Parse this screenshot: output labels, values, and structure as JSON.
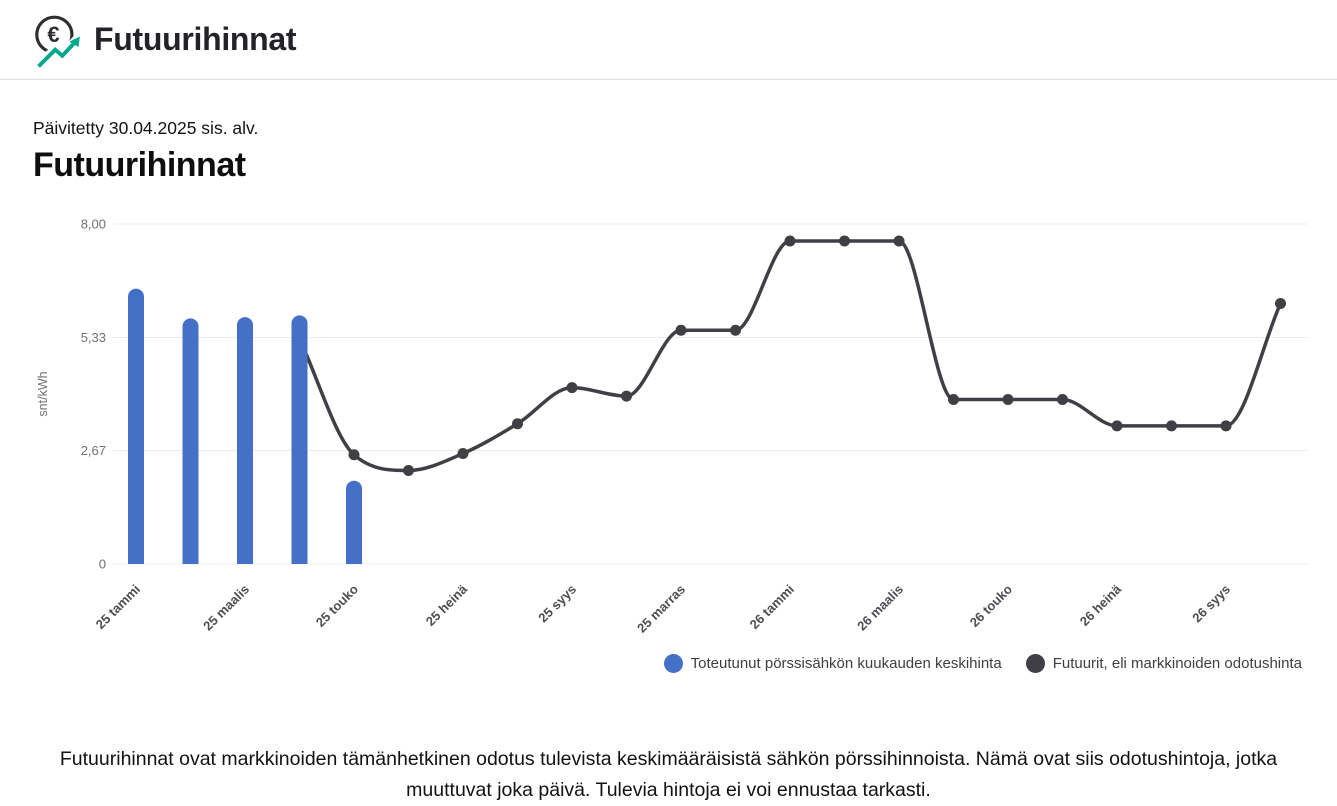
{
  "header": {
    "title": "Futuurihinnat",
    "icon": "euro-trend-icon"
  },
  "page": {
    "updated_text": "Päivitetty 30.04.2025 sis. alv.",
    "heading": "Futuurihinnat",
    "footer_text": "Futuurihinnat ovat markkinoiden tämänhetkinen odotus tulevista keskimääräisistä sähkön pörssihinnoista. Nämä ovat siis odotushintoja, jotka muuttuvat joka päivä. Tulevia hintoja ei voi ennustaa tarkasti."
  },
  "colors": {
    "bar_blue": "#4470c8",
    "line_dark": "#3f3f45",
    "accent_teal": "#00a88e",
    "icon_dark": "#2e2e33",
    "gridline": "#ebebee"
  },
  "chart_data": {
    "type": "bar+line",
    "title": "Futuurihinnat",
    "ylabel": "snt/kWh",
    "xlabel": "",
    "ylim": [
      0,
      8
    ],
    "grid": "horizontal",
    "legend_position": "bottom-right",
    "yticks": [
      {
        "value": 0,
        "label": "0"
      },
      {
        "value": 2.67,
        "label": "2,67"
      },
      {
        "value": 5.33,
        "label": "5,33"
      },
      {
        "value": 8,
        "label": "8,00"
      }
    ],
    "n_slots": 22,
    "x_tick_labels": [
      {
        "slot": 0,
        "label": "25 tammi"
      },
      {
        "slot": 2,
        "label": "25 maalis"
      },
      {
        "slot": 4,
        "label": "25 touko"
      },
      {
        "slot": 6,
        "label": "25 heinä"
      },
      {
        "slot": 8,
        "label": "25 syys"
      },
      {
        "slot": 10,
        "label": "25 marras"
      },
      {
        "slot": 12,
        "label": "26 tammi"
      },
      {
        "slot": 14,
        "label": "26 maalis"
      },
      {
        "slot": 16,
        "label": "26 touko"
      },
      {
        "slot": 18,
        "label": "26 heinä"
      },
      {
        "slot": 20,
        "label": "26 syys"
      }
    ],
    "series": [
      {
        "name": "Toteutunut pörssisähkön kuukauden keskihinta",
        "type": "bar",
        "color": "#4470c8",
        "values": [
          6.48,
          5.78,
          5.81,
          5.85,
          1.96,
          null,
          null,
          null,
          null,
          null,
          null,
          null,
          null,
          null,
          null,
          null,
          null,
          null,
          null,
          null,
          null,
          null
        ]
      },
      {
        "name": "Futuurit, eli markkinoiden odotushinta",
        "type": "line",
        "color": "#3f3f45",
        "values": [
          null,
          null,
          null,
          5.3,
          2.57,
          2.2,
          2.6,
          3.3,
          4.15,
          3.95,
          5.5,
          5.5,
          7.6,
          7.6,
          7.6,
          3.87,
          3.87,
          3.87,
          3.25,
          3.25,
          3.25,
          6.13
        ]
      }
    ]
  }
}
